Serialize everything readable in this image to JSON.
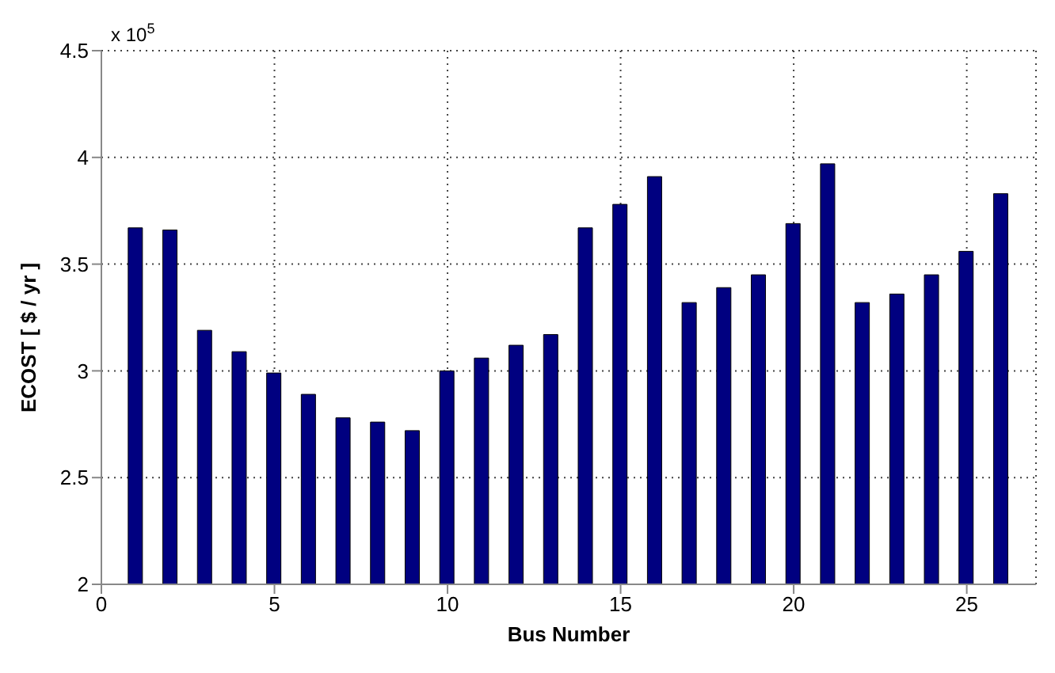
{
  "chart_data": {
    "type": "bar",
    "xlabel": "Bus Number",
    "ylabel": "ECOST [ $ / yr ]",
    "annotations": [
      "x 10$^{5}$"
    ],
    "x": [
      1,
      2,
      3,
      4,
      5,
      6,
      7,
      8,
      9,
      10,
      11,
      12,
      13,
      14,
      15,
      16,
      17,
      18,
      19,
      20,
      21,
      22,
      23,
      24,
      25,
      26
    ],
    "values": [
      3.67,
      3.66,
      3.19,
      3.09,
      2.99,
      2.89,
      2.78,
      2.76,
      2.72,
      3.0,
      3.06,
      3.12,
      3.17,
      3.67,
      3.78,
      3.91,
      3.32,
      3.39,
      3.45,
      3.69,
      3.97,
      3.32,
      3.36,
      3.45,
      3.56,
      3.83
    ],
    "color": "#000080",
    "xlim": [
      0,
      27
    ],
    "xticks": [
      0,
      5,
      10,
      15,
      20,
      25
    ],
    "ylim": [
      2,
      4.5
    ],
    "yticks": [
      2,
      2.5,
      3,
      3.5,
      4,
      4.5
    ],
    "grid": true
  }
}
